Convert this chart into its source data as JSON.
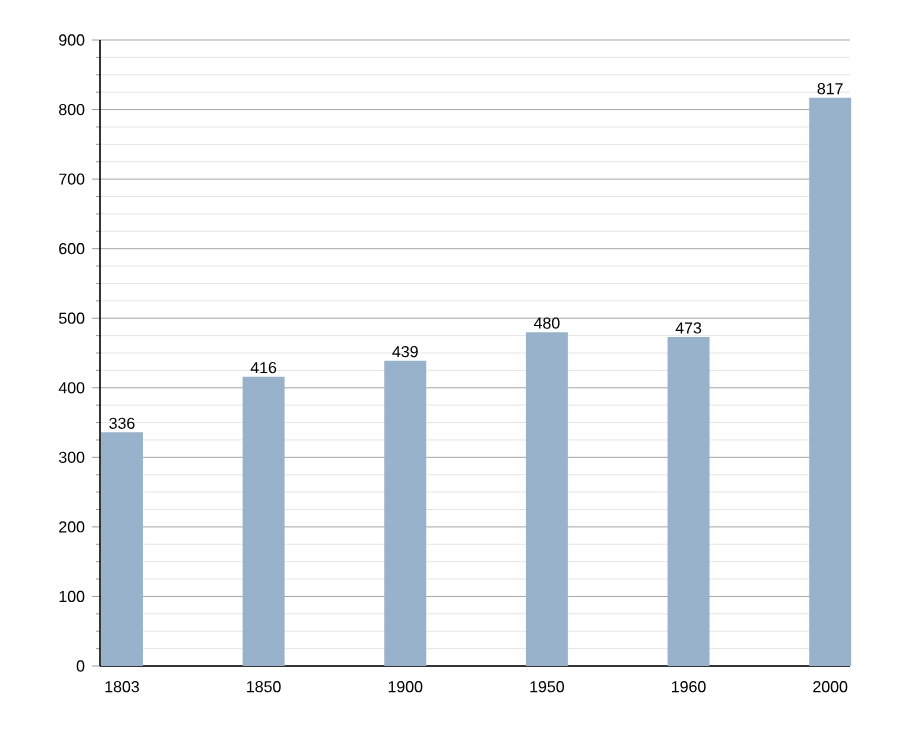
{
  "chart_data": {
    "type": "bar",
    "categories": [
      "1803",
      "1850",
      "1900",
      "1950",
      "1960",
      "2000"
    ],
    "values": [
      336,
      416,
      439,
      480,
      473,
      817
    ],
    "color": "#98b2cc",
    "ylim": [
      0,
      900
    ],
    "yticks": [
      0,
      100,
      200,
      300,
      400,
      500,
      600,
      700,
      800,
      900
    ],
    "grid": true,
    "data_labels": true
  }
}
